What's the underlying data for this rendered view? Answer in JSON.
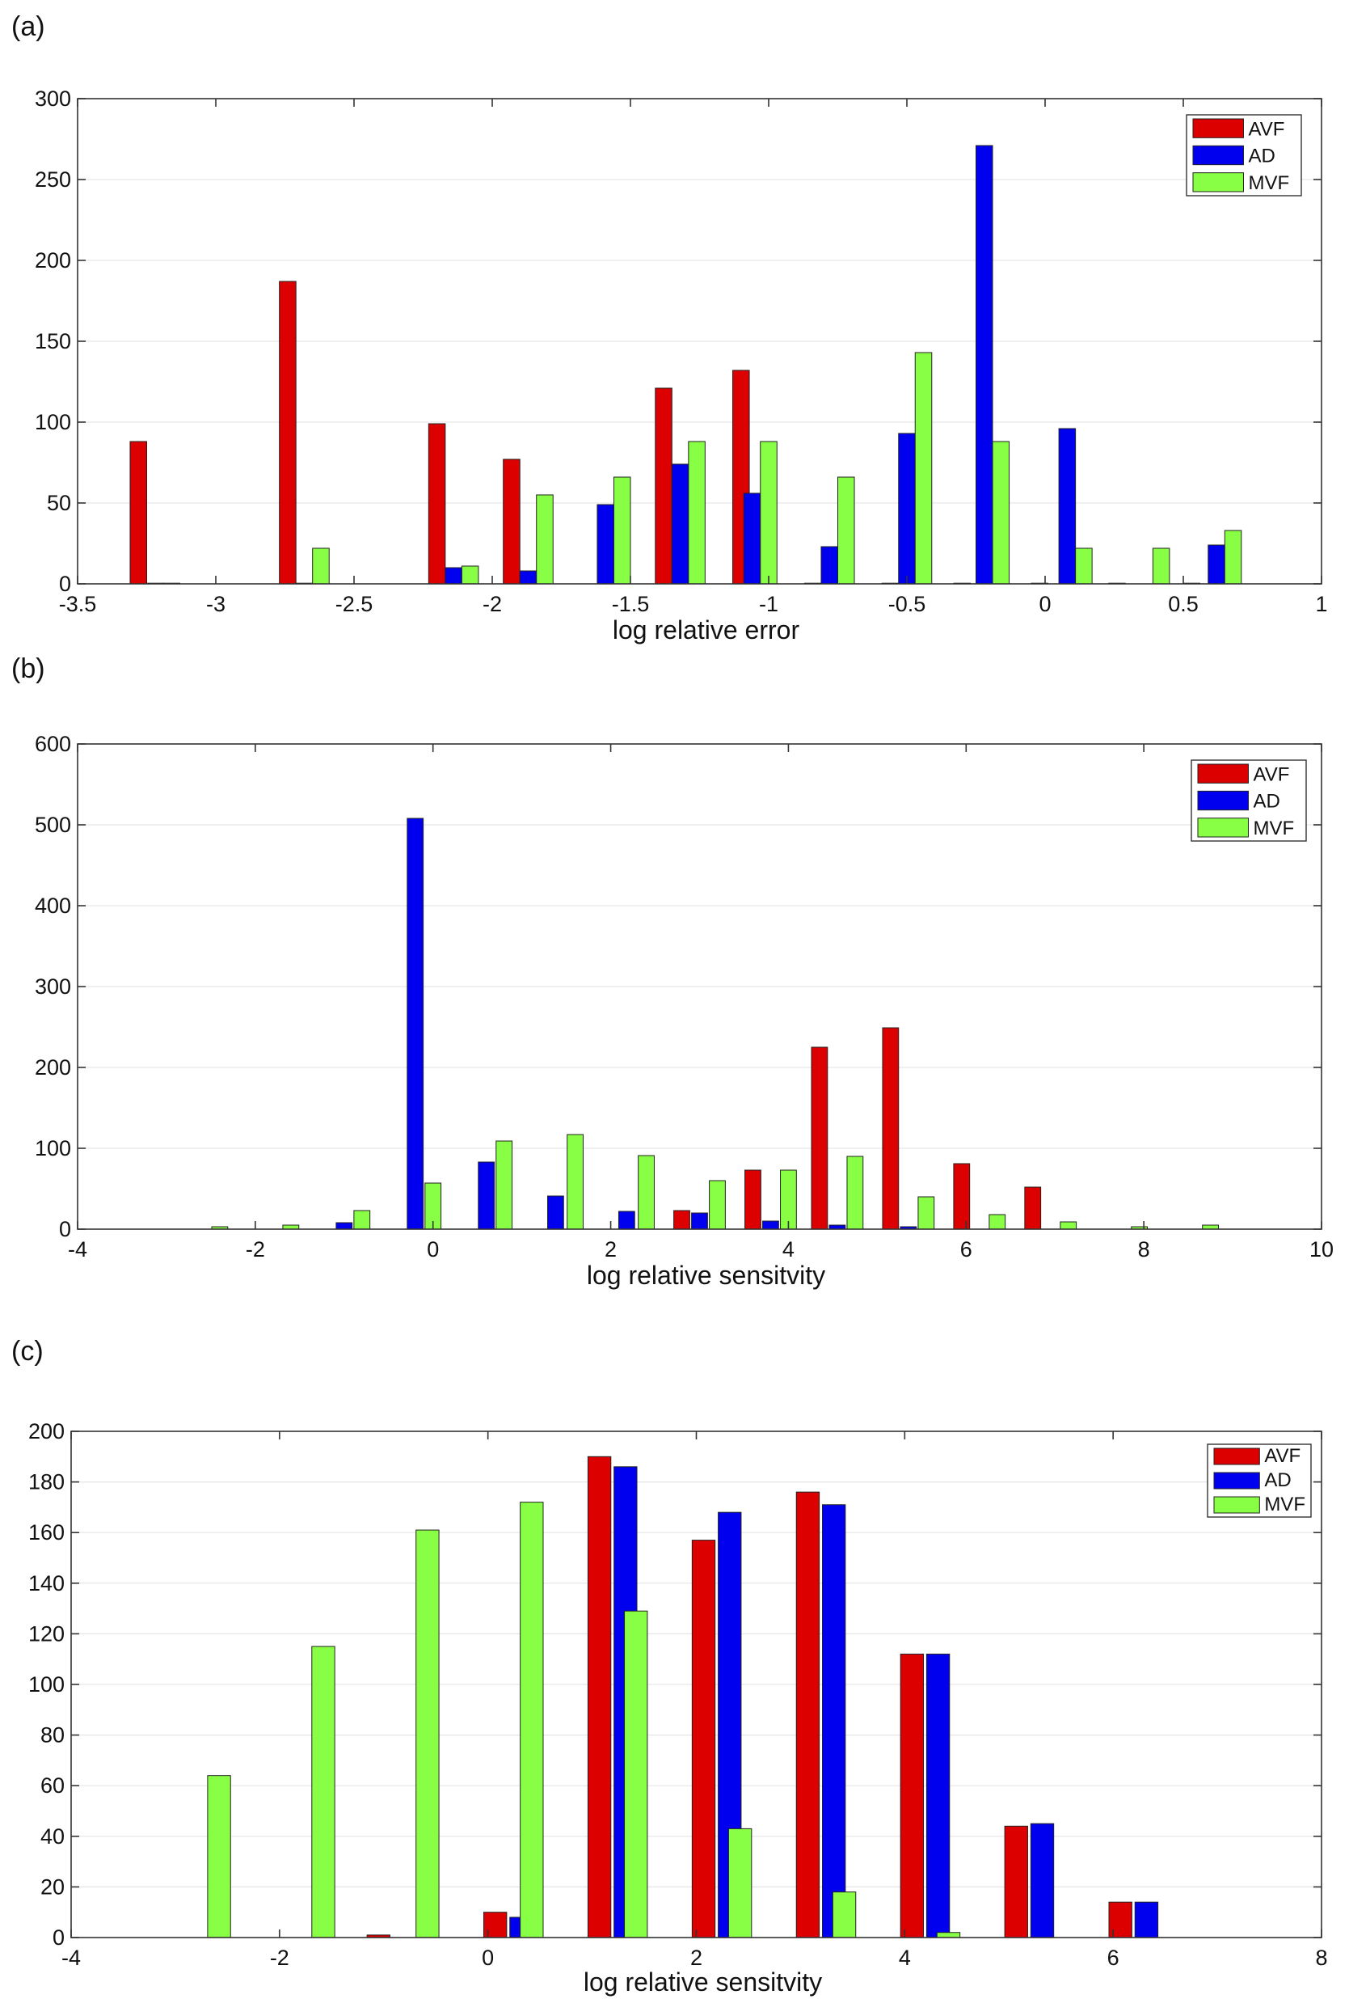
{
  "colors": {
    "AVF": "#dd0000",
    "AD": "#0000ee",
    "MVF": "#88ff44"
  },
  "chart_data": [
    {
      "panel_label": "(a)",
      "type": "bar",
      "xlabel": "log relative error",
      "ylabel": "",
      "xlim": [
        -3.5,
        1
      ],
      "ylim": [
        0,
        300
      ],
      "xticks": [
        -3.5,
        -3,
        -2.5,
        -2,
        -1.5,
        -1,
        -0.5,
        0,
        0.5,
        1
      ],
      "xtick_labels": [
        "-3.5",
        "-3",
        "-2.5",
        "-2",
        "-1.5",
        "-1",
        "-0.5",
        "0",
        "0.5",
        "1"
      ],
      "yticks": [
        0,
        50,
        100,
        150,
        200,
        250,
        300
      ],
      "ytick_labels": [
        "0",
        "50",
        "100",
        "150",
        "200",
        "250",
        "300"
      ],
      "bar_width": 0.06,
      "grid": true,
      "legend": [
        "AVF",
        "AD",
        "MVF"
      ],
      "legend_position": "top-right",
      "series": [
        {
          "name": "AVF",
          "x": [
            -3.28,
            -2.74,
            -2.2,
            -1.93,
            -1.38,
            -1.1,
            -0.84,
            -0.56,
            -0.3,
            -0.02,
            0.26,
            0.53
          ],
          "values": [
            88,
            187,
            99,
            77,
            121,
            132,
            0,
            0,
            0,
            0,
            0,
            0
          ]
        },
        {
          "name": "AD",
          "x": [
            -3.22,
            -2.68,
            -2.14,
            -1.87,
            -1.59,
            -1.32,
            -1.06,
            -0.78,
            -0.5,
            -0.22,
            0.08,
            0.62
          ],
          "values": [
            0,
            0,
            10,
            8,
            49,
            74,
            56,
            23,
            93,
            271,
            96,
            24
          ]
        },
        {
          "name": "MVF",
          "x": [
            -3.16,
            -2.62,
            -2.08,
            -1.81,
            -1.53,
            -1.26,
            -1.0,
            -0.72,
            -0.44,
            -0.16,
            0.14,
            0.42,
            0.68
          ],
          "values": [
            0,
            22,
            11,
            55,
            66,
            88,
            88,
            66,
            143,
            88,
            22,
            22,
            33
          ]
        }
      ]
    },
    {
      "panel_label": "(b)",
      "type": "bar",
      "xlabel": "log relative sensitvity",
      "ylabel": "",
      "xlim": [
        -4,
        10
      ],
      "ylim": [
        0,
        600
      ],
      "xticks": [
        -4,
        -2,
        0,
        2,
        4,
        6,
        8,
        10
      ],
      "xtick_labels": [
        "-4",
        "-2",
        "0",
        "2",
        "4",
        "6",
        "8",
        "10"
      ],
      "yticks": [
        0,
        100,
        200,
        300,
        400,
        500,
        600
      ],
      "ytick_labels": [
        "0",
        "100",
        "200",
        "300",
        "400",
        "500",
        "600"
      ],
      "bar_width": 0.18,
      "grid": true,
      "legend": [
        "AVF",
        "AD",
        "MVF"
      ],
      "legend_position": "top-right",
      "series": [
        {
          "name": "AVF",
          "x": [
            2.8,
            3.6,
            4.35,
            5.15,
            5.95,
            6.75
          ],
          "values": [
            23,
            73,
            225,
            249,
            81,
            52
          ]
        },
        {
          "name": "AD",
          "x": [
            -1.0,
            -0.2,
            0.6,
            1.38,
            2.18,
            3.0,
            3.8,
            4.55,
            5.35
          ],
          "values": [
            8,
            508,
            83,
            41,
            22,
            20,
            10,
            5,
            3
          ]
        },
        {
          "name": "MVF",
          "x": [
            -2.4,
            -1.6,
            -0.8,
            0.0,
            0.8,
            1.6,
            2.4,
            3.2,
            4.0,
            4.75,
            5.55,
            6.35,
            7.15,
            7.95,
            8.75
          ],
          "values": [
            3,
            5,
            23,
            57,
            109,
            117,
            91,
            60,
            73,
            90,
            40,
            18,
            9,
            3,
            5
          ]
        }
      ]
    },
    {
      "panel_label": "(c)",
      "type": "bar",
      "xlabel": "log relative sensitvity",
      "ylabel": "",
      "xlim": [
        -4,
        8
      ],
      "ylim": [
        0,
        200
      ],
      "xticks": [
        -4,
        -2,
        0,
        2,
        4,
        6,
        8
      ],
      "xtick_labels": [
        "-4",
        "-2",
        "0",
        "2",
        "4",
        "6",
        "8"
      ],
      "yticks": [
        0,
        20,
        40,
        60,
        80,
        100,
        120,
        140,
        160,
        180,
        200
      ],
      "ytick_labels": [
        "0",
        "20",
        "40",
        "60",
        "80",
        "100",
        "120",
        "140",
        "160",
        "180",
        "200"
      ],
      "bar_width": 0.22,
      "grid": true,
      "legend": [
        "AVF",
        "AD",
        "MVF"
      ],
      "legend_position": "top-right",
      "series": [
        {
          "name": "AVF",
          "x": [
            -1.05,
            0.07,
            1.07,
            2.07,
            3.07,
            4.07,
            5.07,
            6.07
          ],
          "values": [
            1,
            10,
            190,
            157,
            176,
            112,
            44,
            14
          ]
        },
        {
          "name": "AD",
          "x": [
            0.32,
            1.32,
            2.32,
            3.32,
            4.32,
            5.32,
            6.32
          ],
          "values": [
            8,
            186,
            168,
            171,
            112,
            45,
            14
          ]
        },
        {
          "name": "MVF",
          "x": [
            -2.58,
            -1.58,
            -0.58,
            0.42,
            1.42,
            2.42,
            3.42,
            4.42
          ],
          "values": [
            64,
            115,
            161,
            172,
            129,
            43,
            18,
            2
          ]
        }
      ]
    }
  ]
}
